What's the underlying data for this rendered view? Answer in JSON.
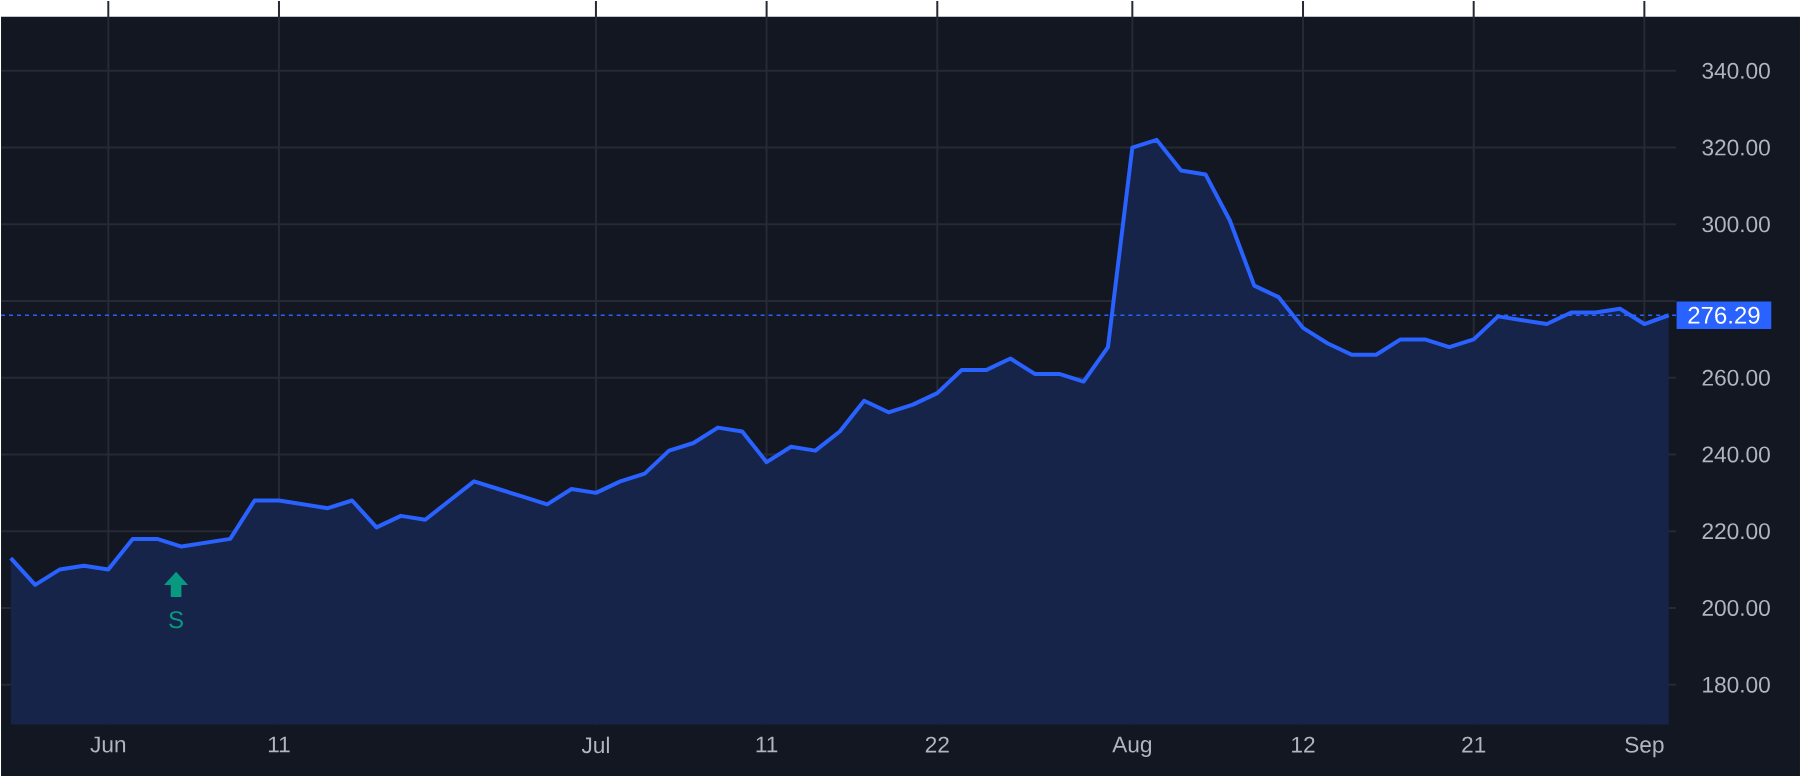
{
  "chart_data": {
    "type": "area",
    "categories": [
      null,
      null,
      null,
      null,
      "Jun",
      null,
      null,
      null,
      null,
      null,
      null,
      "11",
      null,
      null,
      null,
      null,
      null,
      null,
      null,
      null,
      null,
      null,
      null,
      null,
      "Jul",
      null,
      null,
      null,
      null,
      null,
      null,
      "11",
      null,
      null,
      null,
      null,
      null,
      null,
      "22",
      null,
      null,
      null,
      null,
      null,
      null,
      null,
      "Aug",
      null,
      null,
      null,
      null,
      null,
      null,
      "12",
      null,
      null,
      null,
      null,
      null,
      null,
      "21",
      null,
      null,
      null,
      null,
      null,
      null,
      "Sep",
      null
    ],
    "series": [
      {
        "color": "#2962ff",
        "values": [
          213,
          206,
          210,
          211,
          210,
          218,
          218,
          216,
          217,
          218,
          228,
          228,
          227,
          226,
          228,
          221,
          224,
          223,
          228,
          233,
          231,
          229,
          227,
          231,
          230,
          233,
          235,
          241,
          243,
          247,
          246,
          238,
          242,
          241,
          246,
          254,
          251,
          253,
          256,
          262,
          262,
          265,
          261,
          261,
          259,
          268,
          320,
          322,
          314,
          313,
          301,
          284,
          281,
          273,
          269,
          266,
          266,
          270,
          270,
          268,
          270,
          276,
          275,
          274,
          277,
          277,
          278,
          274,
          276.29
        ]
      }
    ],
    "ylim": [
      169.6,
      358.2
    ],
    "yticks": [
      {
        "value": 180,
        "label": "180.00"
      },
      {
        "value": 200,
        "label": "200.00"
      },
      {
        "value": 220,
        "label": "220.00"
      },
      {
        "value": 240,
        "label": "240.00"
      },
      {
        "value": 260,
        "label": "260.00"
      },
      {
        "value": 280,
        "label": null
      },
      {
        "value": 300,
        "label": "300.00"
      },
      {
        "value": 320,
        "label": "320.00"
      },
      {
        "value": 340,
        "label": "340.00"
      }
    ],
    "ref_lines": [
      {
        "axis": "y",
        "value": 276.29,
        "label": "276.29",
        "color": "#2962ff",
        "line_style": "dotted"
      }
    ],
    "annotations": [
      "S"
    ],
    "grid": true,
    "marker": "none",
    "line_style": "solid"
  }
}
